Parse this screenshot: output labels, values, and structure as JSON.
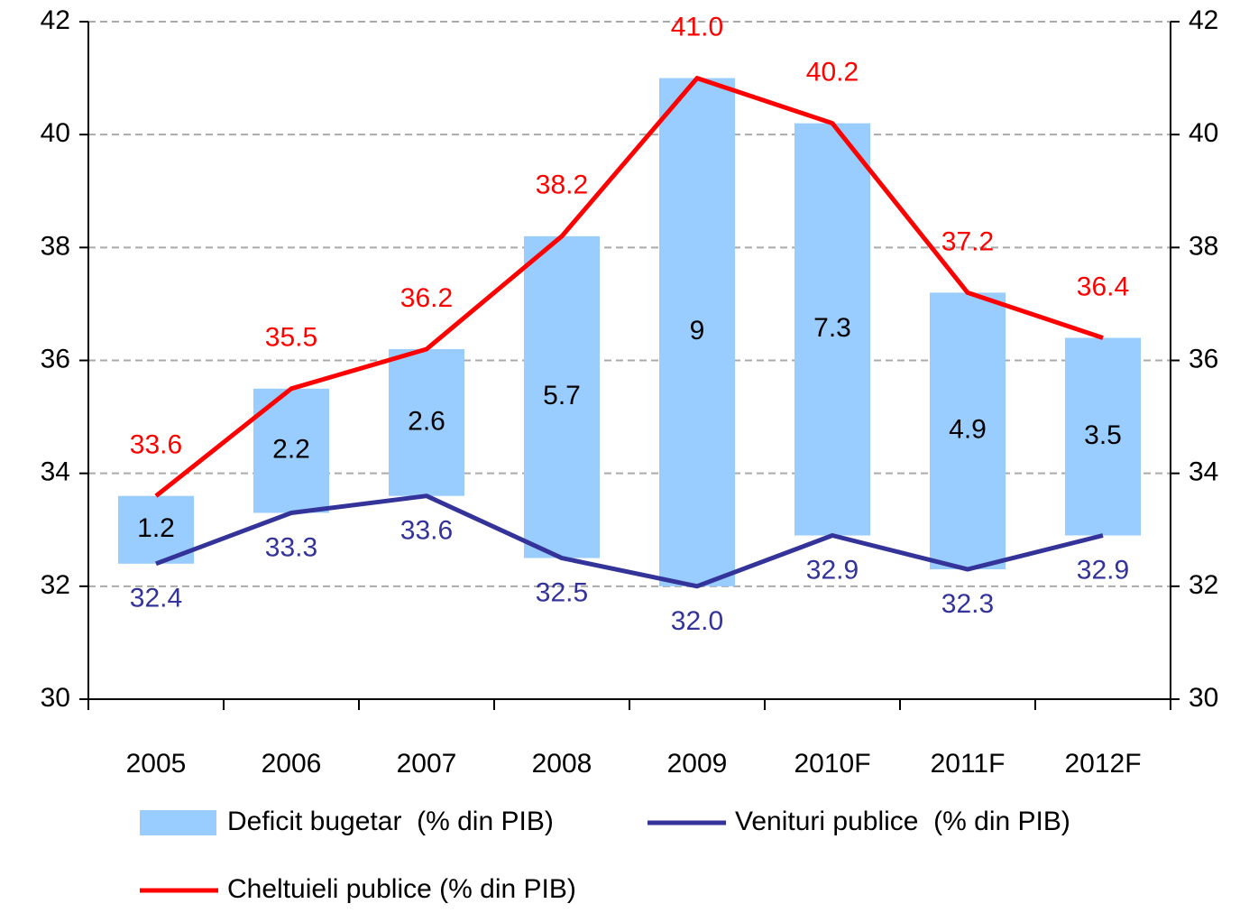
{
  "chart_data": {
    "type": "combo",
    "categories": [
      "2005",
      "2006",
      "2007",
      "2008",
      "2009",
      "2010F",
      "2011F",
      "2012F"
    ],
    "series": [
      {
        "name": "Deficit bugetar  (% din PIB)",
        "type": "bar",
        "base": "Venituri publice  (% din PIB)",
        "color": "#99ccff",
        "values": [
          1.2,
          2.2,
          2.6,
          5.7,
          9.0,
          7.3,
          4.9,
          3.5
        ]
      },
      {
        "name": "Venituri publice  (% din PIB)",
        "type": "line",
        "color": "#333399",
        "values": [
          32.4,
          33.3,
          33.6,
          32.5,
          32.0,
          32.9,
          32.3,
          32.9
        ],
        "value_labels": [
          "32.4",
          "33.3",
          "33.6",
          "32.5",
          "32.0",
          "32.9",
          "32.3",
          "32.9"
        ]
      },
      {
        "name": "Cheltuieli publice (% din PIB)",
        "type": "line",
        "color": "#ff0000",
        "values": [
          33.6,
          35.5,
          36.2,
          38.2,
          41.0,
          40.2,
          37.2,
          36.4
        ],
        "value_labels": [
          "33.6",
          "35.5",
          "36.2",
          "38.2",
          "41.0",
          "40.2",
          "37.2",
          "36.4"
        ]
      }
    ],
    "ylim": [
      30,
      42
    ],
    "yticks": [
      30,
      32,
      34,
      36,
      38,
      40,
      42
    ],
    "y2lim": [
      30,
      42
    ],
    "y2ticks": [
      30,
      32,
      34,
      36,
      38,
      40,
      42
    ],
    "grid": true
  }
}
